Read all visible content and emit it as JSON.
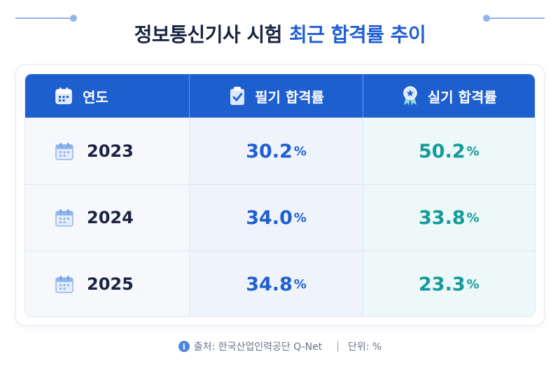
{
  "title": {
    "part1": "정보통신기사 시험",
    "part2": "최근 합격률 추이"
  },
  "table": {
    "headers": [
      "연도",
      "필기 합격률",
      "실기 합격률"
    ],
    "rows": [
      {
        "year": "2023",
        "written": "30.2",
        "practical": "50.2"
      },
      {
        "year": "2024",
        "written": "34.0",
        "practical": "33.8"
      },
      {
        "year": "2025",
        "written": "34.8",
        "practical": "23.3"
      }
    ],
    "unit_symbol": "%"
  },
  "footer": {
    "source": "출처: 한국산업인력공단 Q-Net",
    "separator": "|",
    "unit": "단위: %"
  },
  "colors": {
    "header": "#1d5fcf",
    "written": "#1f5fd1",
    "practical": "#149a9c"
  },
  "icons": [
    "calendar-icon",
    "clipboard-check-icon",
    "award-ribbon-icon",
    "info-icon"
  ]
}
